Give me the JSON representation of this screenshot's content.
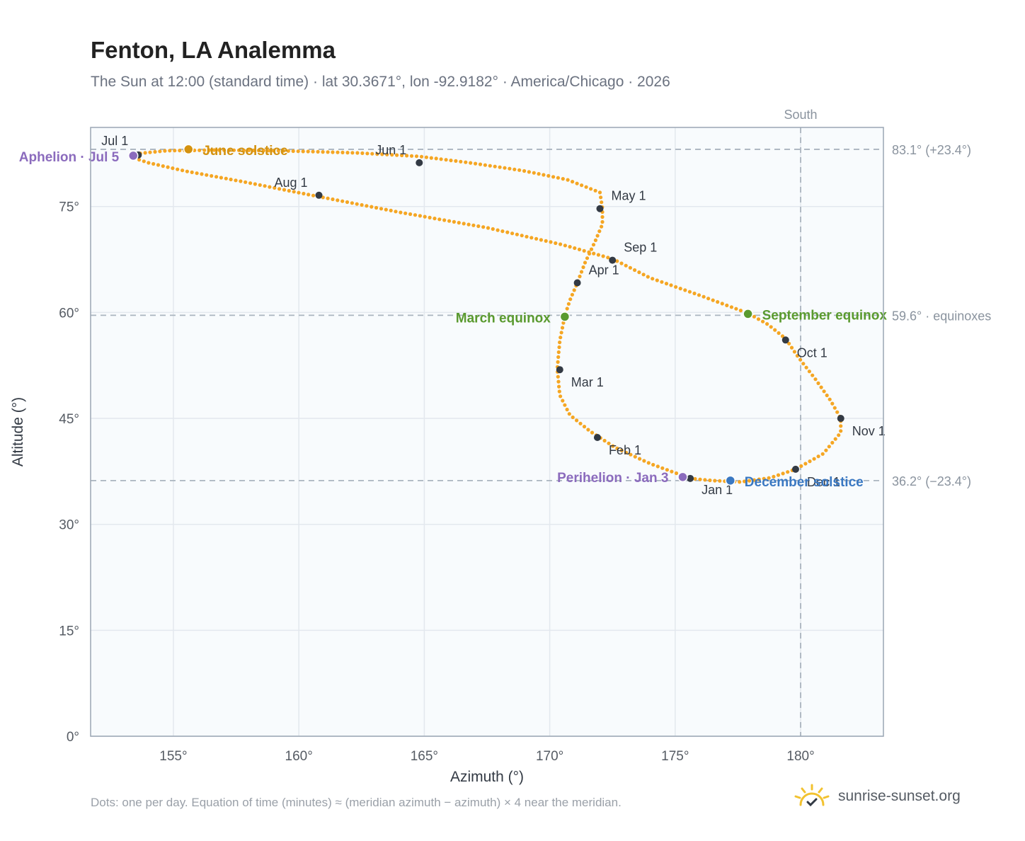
{
  "title": "Fenton, LA Analemma",
  "subtitle": "The Sun at 12:00 (standard time) · lat 30.3671°, lon -92.9182° · America/Chicago · 2026",
  "footnote": "Dots: one per day. Equation of time (minutes) ≈ (meridian azimuth − azimuth) × 4 near the meridian.",
  "brand": {
    "name": "sunrise-sunset.org",
    "icon": "sun-logo-icon"
  },
  "colors": {
    "curve": "#f5a623",
    "month_dot": "#333a44",
    "solstice_june": "#d4920f",
    "solstice_december": "#3a78c2",
    "equinox": "#5a9a2f",
    "apsis": "#8b6bbd",
    "reference_line": "#aab4bf",
    "grid": "#e3e8ee",
    "plot_bg": "#f8fbfd",
    "axis_border": "#9aa6b4"
  },
  "chart_data": {
    "type": "scatter",
    "xlabel": "Azimuth (°)",
    "ylabel": "Altitude (°)",
    "xlim": [
      151.7,
      183.3
    ],
    "ylim": [
      0,
      86.2
    ],
    "x_ticks": [
      155,
      160,
      165,
      170,
      175,
      180
    ],
    "x_tick_labels": [
      "155°",
      "160°",
      "165°",
      "170°",
      "175°",
      "180°"
    ],
    "y_ticks": [
      0,
      15,
      30,
      45,
      60,
      75
    ],
    "y_tick_labels": [
      "0°",
      "15°",
      "30°",
      "45°",
      "60°",
      "75°"
    ],
    "grid": true,
    "meridian": {
      "label": "South",
      "azimuth": 180
    },
    "reference_lines": [
      {
        "altitude": 83.1,
        "label": "83.1° (+23.4°)"
      },
      {
        "altitude": 59.6,
        "label": "59.6° · equinoxes"
      },
      {
        "altitude": 36.2,
        "label": "36.2° (−23.4°)"
      }
    ],
    "analemma_path": [
      [
        175.6,
        36.5
      ],
      [
        176.5,
        36.2
      ],
      [
        177.6,
        36.0
      ],
      [
        178.8,
        36.6
      ],
      [
        179.8,
        37.8
      ],
      [
        180.9,
        40.0
      ],
      [
        181.6,
        43.0
      ],
      [
        181.6,
        45.0
      ],
      [
        181.2,
        47.5
      ],
      [
        180.6,
        50.5
      ],
      [
        179.9,
        53.7
      ],
      [
        179.4,
        56.3
      ],
      [
        178.7,
        58.3
      ],
      [
        177.9,
        59.9
      ],
      [
        176.0,
        62.4
      ],
      [
        174.0,
        64.9
      ],
      [
        172.5,
        67.6
      ],
      [
        170.5,
        69.6
      ],
      [
        167.5,
        72.0
      ],
      [
        164.0,
        74.2
      ],
      [
        160.8,
        76.4
      ],
      [
        157.8,
        78.5
      ],
      [
        155.5,
        80.0
      ],
      [
        154.0,
        81.2
      ],
      [
        153.4,
        81.9
      ],
      [
        153.6,
        82.5
      ],
      [
        154.7,
        82.9
      ],
      [
        156.7,
        83.0
      ],
      [
        159.2,
        82.9
      ],
      [
        162.3,
        82.6
      ],
      [
        164.8,
        82.1
      ],
      [
        166.8,
        81.2
      ],
      [
        168.9,
        80.1
      ],
      [
        170.7,
        78.8
      ],
      [
        172.0,
        77.0
      ],
      [
        172.1,
        74.8
      ],
      [
        172.1,
        72.5
      ],
      [
        171.8,
        70.0
      ],
      [
        171.4,
        67.0
      ],
      [
        171.1,
        64.2
      ],
      [
        170.8,
        61.7
      ],
      [
        170.6,
        59.5
      ],
      [
        170.4,
        56.0
      ],
      [
        170.3,
        52.0
      ],
      [
        170.4,
        48.3
      ],
      [
        170.8,
        45.5
      ],
      [
        171.6,
        43.2
      ],
      [
        172.6,
        40.9
      ],
      [
        174.0,
        38.6
      ],
      [
        175.3,
        36.9
      ],
      [
        175.6,
        36.5
      ]
    ],
    "month_markers": [
      {
        "label": "Jan 1",
        "azimuth": 175.6,
        "altitude": 36.5
      },
      {
        "label": "Feb 1",
        "azimuth": 171.9,
        "altitude": 42.3
      },
      {
        "label": "Mar 1",
        "azimuth": 170.4,
        "altitude": 51.9
      },
      {
        "label": "Apr 1",
        "azimuth": 171.1,
        "altitude": 64.2
      },
      {
        "label": "May 1",
        "azimuth": 172.0,
        "altitude": 74.7
      },
      {
        "label": "Jun 1",
        "azimuth": 164.8,
        "altitude": 81.2
      },
      {
        "label": "Jul 1",
        "azimuth": 153.6,
        "altitude": 82.3
      },
      {
        "label": "Aug 1",
        "azimuth": 160.8,
        "altitude": 76.6
      },
      {
        "label": "Sep 1",
        "azimuth": 172.5,
        "altitude": 67.4
      },
      {
        "label": "Oct 1",
        "azimuth": 179.4,
        "altitude": 56.1
      },
      {
        "label": "Nov 1",
        "azimuth": 181.6,
        "altitude": 45.0
      },
      {
        "label": "Dec 1",
        "azimuth": 179.8,
        "altitude": 37.8
      }
    ],
    "events": [
      {
        "label": "June solstice",
        "azimuth": 155.6,
        "altitude": 83.1,
        "kind": "solstice_june"
      },
      {
        "label": "December solstice",
        "azimuth": 177.2,
        "altitude": 36.2,
        "kind": "solstice_december"
      },
      {
        "label": "March equinox",
        "azimuth": 170.6,
        "altitude": 59.4,
        "kind": "equinox"
      },
      {
        "label": "September equinox",
        "azimuth": 177.9,
        "altitude": 59.8,
        "kind": "equinox"
      },
      {
        "label": "Aphelion · Jul 5",
        "azimuth": 153.4,
        "altitude": 82.2,
        "kind": "apsis"
      },
      {
        "label": "Perihelion · Jan 3",
        "azimuth": 175.3,
        "altitude": 36.7,
        "kind": "apsis"
      }
    ]
  }
}
